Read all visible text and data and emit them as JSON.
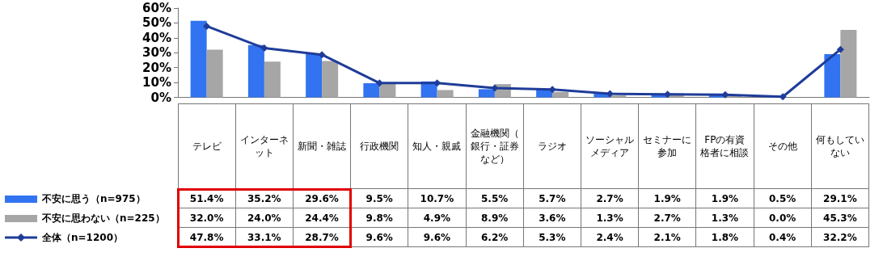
{
  "chart_data": {
    "type": "bar",
    "categories": [
      "テレビ",
      "インターネット",
      "新聞・雑誌",
      "行政機関",
      "知人・親戚",
      "金融機関（銀行・証券など）",
      "ラジオ",
      "ソーシャルメディア",
      "セミナーに参加",
      "FPの有資格者に相談",
      "その他",
      "何もしていない"
    ],
    "series": [
      {
        "name": "不安に思う（n=975）",
        "color": "#3173f0",
        "values": [
          51.4,
          35.2,
          29.6,
          9.5,
          10.7,
          5.5,
          5.7,
          2.7,
          1.9,
          1.9,
          0.5,
          29.1
        ],
        "value_labels": [
          "51.4%",
          "35.2%",
          "29.6%",
          "9.5%",
          "10.7%",
          "5.5%",
          "5.7%",
          "2.7%",
          "1.9%",
          "1.9%",
          "0.5%",
          "29.1%"
        ]
      },
      {
        "name": "不安に思わない（n=225）",
        "color": "#a6a6a6",
        "values": [
          32.0,
          24.0,
          24.4,
          9.8,
          4.9,
          8.9,
          3.6,
          1.3,
          2.7,
          1.3,
          0.0,
          45.3
        ],
        "value_labels": [
          "32.0%",
          "24.0%",
          "24.4%",
          "9.8%",
          "4.9%",
          "8.9%",
          "3.6%",
          "1.3%",
          "2.7%",
          "1.3%",
          "0.0%",
          "45.3%"
        ]
      },
      {
        "name": "全体（n=1200）",
        "type": "line",
        "color": "#1f3c99",
        "marker": "diamond",
        "values": [
          47.8,
          33.1,
          28.7,
          9.6,
          9.6,
          6.2,
          5.3,
          2.4,
          2.1,
          1.8,
          0.4,
          32.2
        ],
        "value_labels": [
          "47.8%",
          "33.1%",
          "28.7%",
          "9.6%",
          "9.6%",
          "6.2%",
          "5.3%",
          "2.4%",
          "2.1%",
          "1.8%",
          "0.4%",
          "32.2%"
        ]
      }
    ],
    "ylim": [
      0,
      60
    ],
    "yticks": [
      {
        "value": 0,
        "label": "0%"
      },
      {
        "value": 10,
        "label": "10%"
      },
      {
        "value": 20,
        "label": "20%"
      },
      {
        "value": 30,
        "label": "30%"
      },
      {
        "value": 40,
        "label": "40%"
      },
      {
        "value": 50,
        "label": "50%"
      },
      {
        "value": 60,
        "label": "60%"
      }
    ],
    "grid": false,
    "legend": "bottom left"
  }
}
